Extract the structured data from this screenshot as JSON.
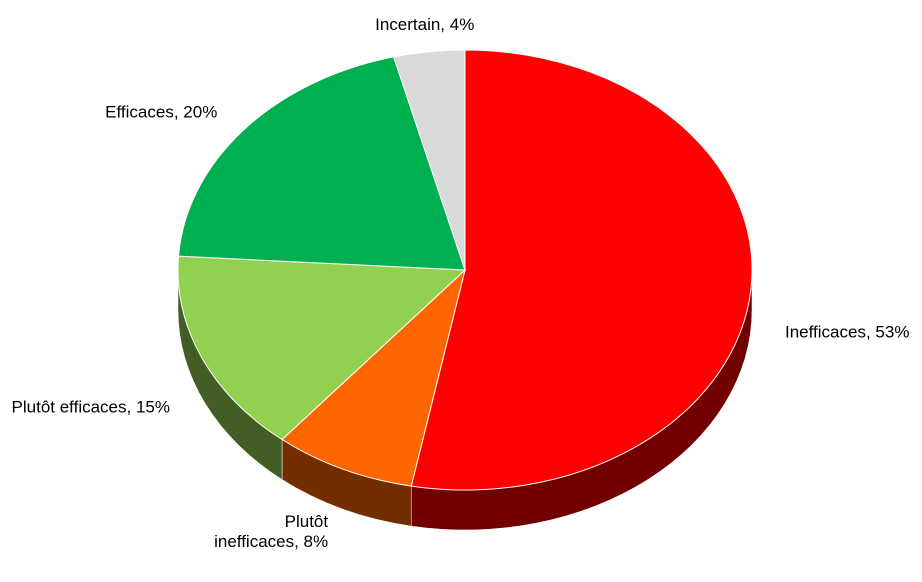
{
  "chart_data": {
    "type": "pie",
    "style": "3d",
    "categories": [
      "Inefficaces, 53%",
      "Plutôt\ninefficaces, 8%",
      "Plutôt efficaces, 15%",
      "Efficaces, 20%",
      "Incertain, 4%"
    ],
    "values": [
      53,
      8,
      15,
      20,
      4
    ],
    "colors": [
      "#ff0000",
      "#ff6600",
      "#92d050",
      "#00b050",
      "#d9d9d9"
    ]
  }
}
